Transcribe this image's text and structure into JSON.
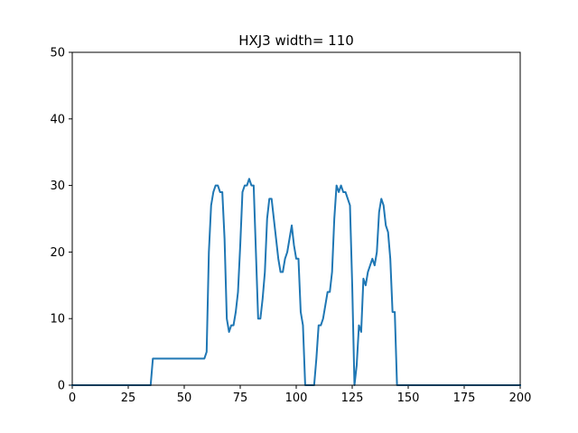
{
  "chart_data": {
    "type": "line",
    "title": "HXJ3 width= 110",
    "xlabel": "",
    "ylabel": "",
    "xlim": [
      0,
      200
    ],
    "ylim": [
      0,
      50
    ],
    "x_ticks": [
      0,
      25,
      50,
      75,
      100,
      125,
      150,
      175,
      200
    ],
    "y_ticks": [
      0,
      10,
      20,
      30,
      40,
      50
    ],
    "grid": false,
    "line_color": "#1f77b4",
    "series": [
      {
        "x": [
          0,
          35,
          36,
          37,
          38,
          40,
          45,
          50,
          55,
          57,
          58,
          59,
          60,
          61,
          62,
          63,
          64,
          65,
          66,
          67,
          68,
          69,
          70,
          71,
          72,
          73,
          74,
          75,
          76,
          77,
          78,
          79,
          80,
          81,
          82,
          83,
          84,
          85,
          86,
          87,
          88,
          89,
          90,
          91,
          92,
          93,
          94,
          95,
          96,
          97,
          98,
          99,
          100,
          101,
          102,
          103,
          104,
          105,
          106,
          107,
          108,
          109,
          110,
          111,
          112,
          113,
          114,
          115,
          116,
          117,
          118,
          119,
          120,
          121,
          122,
          123,
          124,
          125,
          126,
          127,
          128,
          129,
          130,
          131,
          132,
          133,
          134,
          135,
          136,
          137,
          138,
          139,
          140,
          141,
          142,
          143,
          144,
          145,
          146,
          150,
          175,
          200
        ],
        "y": [
          0,
          0,
          4,
          4,
          4,
          4,
          4,
          4,
          4,
          4,
          4,
          4,
          5,
          20,
          27,
          29,
          30,
          30,
          29,
          29,
          22,
          10,
          8,
          9,
          9,
          11,
          14,
          21,
          29,
          30,
          30,
          31,
          30,
          30,
          20,
          10,
          10,
          13,
          17,
          25,
          28,
          28,
          25,
          22,
          19,
          17,
          17,
          19,
          20,
          22,
          24,
          21,
          19,
          19,
          11,
          9,
          0,
          0,
          0,
          0,
          0,
          4,
          9,
          9,
          10,
          12,
          14,
          14,
          17,
          25,
          30,
          29,
          30,
          29,
          29,
          28,
          27,
          15,
          0,
          3,
          9,
          8,
          16,
          15,
          17,
          18,
          19,
          18,
          20,
          26,
          28,
          27,
          24,
          23,
          19,
          11,
          11,
          0,
          0,
          0,
          0,
          0
        ]
      }
    ]
  }
}
